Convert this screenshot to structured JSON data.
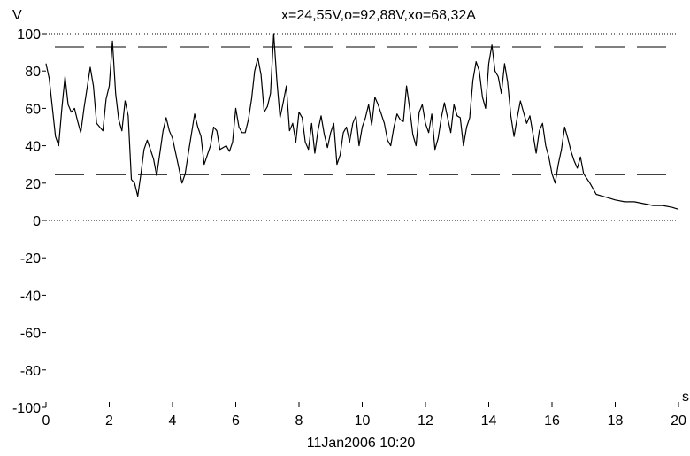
{
  "chart_data": {
    "type": "line",
    "title": "x=24,55V,o=92,88V,xo=68,32A",
    "ylabel": "V",
    "xlabel": "s",
    "timestamp": "11Jan2006  10:20",
    "xlim": [
      0,
      20
    ],
    "ylim": [
      -100,
      100
    ],
    "xticks": [
      0,
      2,
      4,
      6,
      8,
      10,
      12,
      14,
      16,
      18,
      20
    ],
    "yticks": [
      100,
      80,
      60,
      40,
      20,
      0,
      -20,
      -40,
      -60,
      -80,
      -100
    ],
    "reference_lines": [
      {
        "y": 100,
        "style": "dotted"
      },
      {
        "y": 0,
        "style": "dotted"
      },
      {
        "y": 92.88,
        "style": "dashed"
      },
      {
        "y": 24.55,
        "style": "dashed"
      }
    ],
    "series": [
      {
        "color": "#000000",
        "x": [
          0,
          0.1,
          0.3,
          0.4,
          0.5,
          0.6,
          0.7,
          0.8,
          0.9,
          1.0,
          1.1,
          1.2,
          1.4,
          1.5,
          1.6,
          1.8,
          1.9,
          2.0,
          2.1,
          2.2,
          2.3,
          2.4,
          2.5,
          2.6,
          2.7,
          2.8,
          2.9,
          3.0,
          3.1,
          3.2,
          3.3,
          3.4,
          3.5,
          3.6,
          3.7,
          3.8,
          3.9,
          4.0,
          4.1,
          4.2,
          4.3,
          4.4,
          4.5,
          4.7,
          4.8,
          4.9,
          5.0,
          5.2,
          5.3,
          5.4,
          5.5,
          5.7,
          5.8,
          5.9,
          6.0,
          6.1,
          6.2,
          6.3,
          6.4,
          6.5,
          6.6,
          6.7,
          6.8,
          6.9,
          7.0,
          7.1,
          7.2,
          7.3,
          7.4,
          7.5,
          7.6,
          7.7,
          7.8,
          7.9,
          8.0,
          8.1,
          8.2,
          8.3,
          8.4,
          8.5,
          8.6,
          8.7,
          8.8,
          8.9,
          9.0,
          9.1,
          9.2,
          9.3,
          9.4,
          9.5,
          9.6,
          9.7,
          9.8,
          9.9,
          10.0,
          10.1,
          10.2,
          10.3,
          10.4,
          10.5,
          10.6,
          10.7,
          10.8,
          10.9,
          11.0,
          11.1,
          11.2,
          11.3,
          11.4,
          11.5,
          11.6,
          11.7,
          11.8,
          11.9,
          12.0,
          12.1,
          12.2,
          12.3,
          12.4,
          12.5,
          12.6,
          12.7,
          12.8,
          12.9,
          13.0,
          13.1,
          13.2,
          13.3,
          13.4,
          13.5,
          13.6,
          13.7,
          13.8,
          13.9,
          14.0,
          14.1,
          14.2,
          14.3,
          14.4,
          14.5,
          14.6,
          14.7,
          14.8,
          14.9,
          15.0,
          15.1,
          15.2,
          15.3,
          15.4,
          15.5,
          15.6,
          15.7,
          15.8,
          15.9,
          16.0,
          16.1,
          16.2,
          16.3,
          16.4,
          16.5,
          16.6,
          16.7,
          16.8,
          16.9,
          17.0,
          17.2,
          17.4,
          17.6,
          17.8,
          18.0,
          18.3,
          18.6,
          18.9,
          19.2,
          19.5,
          19.8,
          20.0
        ],
        "y": [
          84,
          76,
          45,
          40,
          60,
          77,
          62,
          58,
          60,
          53,
          47,
          60,
          82,
          72,
          52,
          48,
          65,
          72,
          96,
          68,
          54,
          48,
          64,
          56,
          22,
          20,
          13,
          25,
          38,
          43,
          38,
          33,
          24,
          36,
          48,
          55,
          48,
          44,
          36,
          28,
          20,
          25,
          36,
          57,
          50,
          45,
          30,
          40,
          50,
          48,
          38,
          40,
          37,
          42,
          60,
          50,
          47,
          47,
          54,
          65,
          80,
          87,
          78,
          58,
          61,
          68,
          100,
          75,
          55,
          63,
          72,
          48,
          52,
          42,
          58,
          55,
          42,
          38,
          52,
          36,
          48,
          56,
          46,
          39,
          47,
          52,
          30,
          35,
          47,
          50,
          42,
          52,
          56,
          40,
          50,
          55,
          62,
          51,
          66,
          62,
          57,
          52,
          43,
          40,
          50,
          57,
          54,
          53,
          72,
          60,
          46,
          40,
          58,
          62,
          52,
          47,
          57,
          38,
          44,
          55,
          63,
          55,
          47,
          62,
          56,
          55,
          40,
          50,
          55,
          75,
          85,
          80,
          66,
          60,
          84,
          94,
          80,
          77,
          68,
          84,
          74,
          56,
          45,
          55,
          64,
          58,
          52,
          56,
          46,
          36,
          48,
          52,
          40,
          34,
          25,
          20,
          30,
          38,
          50,
          44,
          37,
          32,
          28,
          34,
          25,
          20,
          14,
          13,
          12,
          11,
          10,
          10,
          9,
          8,
          8,
          7,
          6
        ]
      }
    ]
  }
}
